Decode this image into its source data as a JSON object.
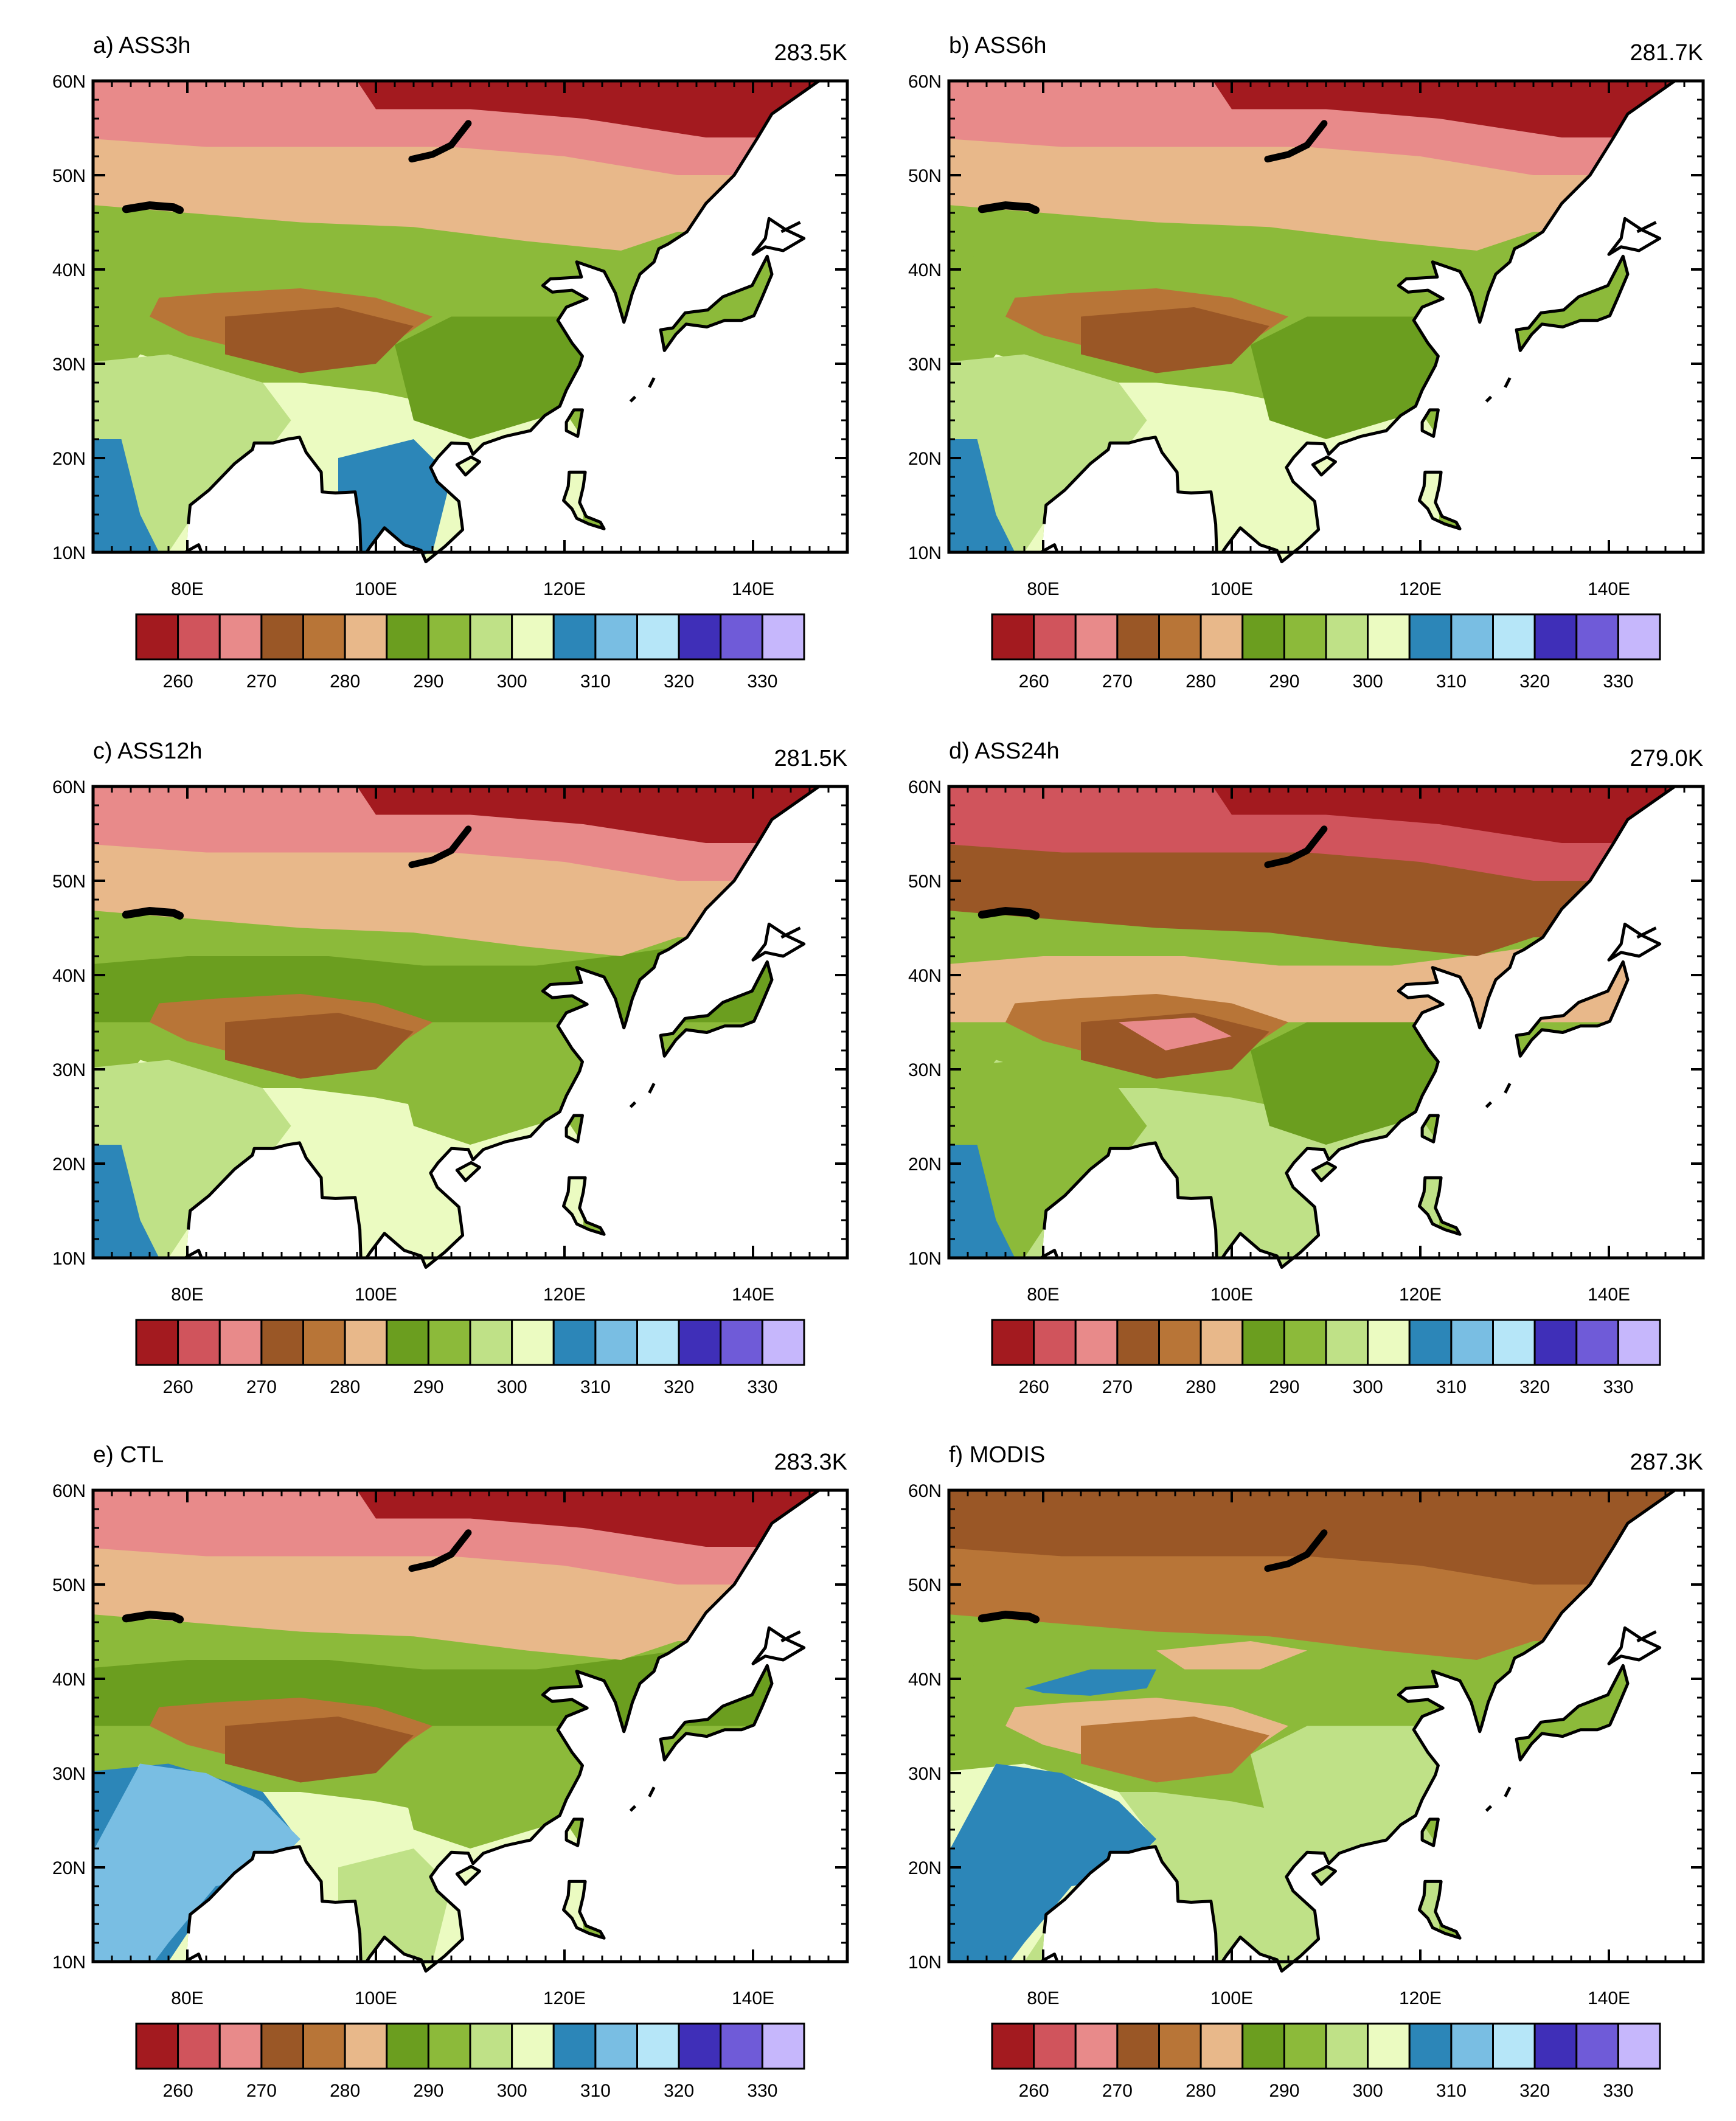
{
  "figure": {
    "panels": [
      {
        "title": "a) ASS3h",
        "mean": "283.5K",
        "scheme": "a"
      },
      {
        "title": "b) ASS6h",
        "mean": "281.7K",
        "scheme": "b"
      },
      {
        "title": "c) ASS12h",
        "mean": "281.5K",
        "scheme": "c"
      },
      {
        "title": "d) ASS24h",
        "mean": "279.0K",
        "scheme": "d"
      },
      {
        "title": "e) CTL",
        "mean": "283.3K",
        "scheme": "e"
      },
      {
        "title": "f) MODIS",
        "mean": "287.3K",
        "scheme": "f"
      }
    ],
    "lat_ticks": [
      "60N",
      "50N",
      "40N",
      "30N",
      "20N",
      "10N"
    ],
    "lon_ticks": [
      "80E",
      "100E",
      "120E",
      "140E"
    ],
    "colorbar": {
      "colors": [
        "#a31a1f",
        "#d0545c",
        "#e88a8a",
        "#9a5726",
        "#b87537",
        "#e8b88a",
        "#6b9e1f",
        "#8cba3a",
        "#bfe187",
        "#ebfbc1",
        "#2c86b8",
        "#79bee3",
        "#b6e6f8",
        "#3f2fb8",
        "#6f5bd8",
        "#c6b7fc"
      ],
      "labels": [
        "260",
        "270",
        "280",
        "290",
        "300",
        "310",
        "320",
        "330"
      ]
    }
  }
}
